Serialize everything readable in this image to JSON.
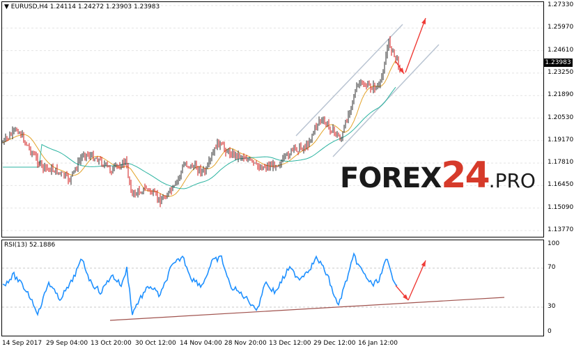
{
  "main_panel": {
    "header": "EURUSD,H4  1.24114 1.24272 1.23903 1.23983",
    "y_ticks": [
      "1.27330",
      "1.25970",
      "1.24610",
      "1.23250",
      "1.21890",
      "1.20530",
      "1.19170",
      "1.17810",
      "1.16450",
      "1.15090",
      "1.13770"
    ],
    "current_price": "1.23983",
    "arrow_color": "#ef3b36"
  },
  "watermark": {
    "forex": "FOREX",
    "num": "24",
    "pro": ".PRO"
  },
  "rsi_panel": {
    "header": "RSI(13) 52.1886",
    "y_ticks": [
      "100",
      "70",
      "30",
      "0"
    ],
    "line_color": "#1e90ff",
    "trend_color": "#a0524d"
  },
  "x_ticks": [
    "14 Sep 2017",
    "29 Sep 04:00",
    "13 Oct 20:00",
    "30 Oct 12:00",
    "14 Nov 04:00",
    "28 Nov 20:00",
    "13 Dec 12:00",
    "29 Dec 12:00",
    "16 Jan 12:00"
  ],
  "colors": {
    "bull": "#2b2b2b",
    "bear": "#d01616",
    "ma_fast": "#e3a32a",
    "ma_slow": "#2ab3a0",
    "channel": "#b9c4d2"
  }
}
